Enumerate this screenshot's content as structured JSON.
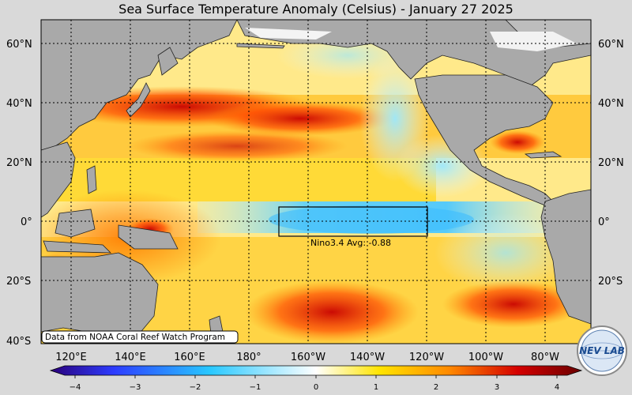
{
  "title": "Sea Surface Temperature Anomaly (Celsius) - January 27 2025",
  "map": {
    "lat_labels": [
      "60°N",
      "40°N",
      "20°N",
      "0°",
      "20°S",
      "40°S"
    ],
    "lon_labels": [
      "120°E",
      "140°E",
      "160°E",
      "180°",
      "160°W",
      "140°W",
      "120°W",
      "100°W",
      "80°W"
    ],
    "nino_box_label": "Nino3.4 Avg: -0.88",
    "source_note": "Data from NOAA Coral Reef Watch Program",
    "land_color": "#a9a9a9"
  },
  "colorbar": {
    "ticks": [
      "−4",
      "−3",
      "−2",
      "−1",
      "0",
      "1",
      "2",
      "3",
      "4"
    ],
    "colors": [
      "#2a007a",
      "#2d3cff",
      "#28c8ff",
      "#ffffff",
      "#ffe400",
      "#ff8a00",
      "#d40000",
      "#6a0000"
    ]
  },
  "logo": {
    "text": "NEV LAB"
  }
}
